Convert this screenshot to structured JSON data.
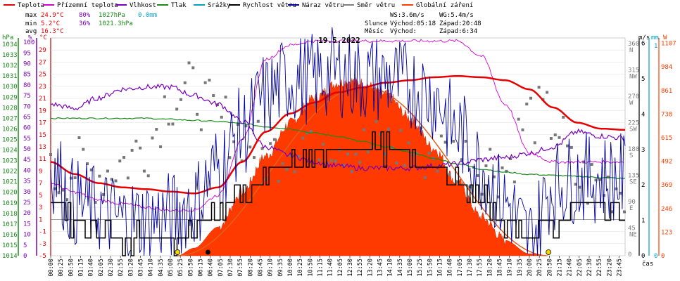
{
  "legend": [
    {
      "label": "Teplota",
      "color": "#e60000"
    },
    {
      "label": "Přízemní teplota",
      "color": "#d400d4"
    },
    {
      "label": "Vlhkost",
      "color": "#7a00b8"
    },
    {
      "label": "Tlak",
      "color": "#1a8a1a"
    },
    {
      "label": "Srážky",
      "color": "#00a0c8"
    },
    {
      "label": "Rychlost větru",
      "color": "#000000"
    },
    {
      "label": "Náraz větru",
      "color": "#0000a0"
    },
    {
      "label": "Směr větru",
      "color": "#808080"
    },
    {
      "label": "Globální záření",
      "color": "#ff4000"
    }
  ],
  "stats": {
    "max_label": "max",
    "max_temp": "24.9°C",
    "max_hum": "80%",
    "max_press": "1027hPa",
    "max_rain": "0.0mm",
    "min_label": "min",
    "min_temp": "5.2°C",
    "min_hum": "36%",
    "min_press": "1021.3hPa",
    "avg_label": "avg",
    "avg_temp": "16.3°C"
  },
  "wind_stats": {
    "ws": "WS:3.6m/s",
    "wg": "WG:5.4m/s",
    "sun_label": "Slunce",
    "sun_rise": "Východ:05:18",
    "sun_set": "Západ:20:48",
    "moon_label": "Měsíc",
    "moon_rise": "Východ:",
    "moon_set": "Západ:6:34"
  },
  "chart_data": {
    "type": "line",
    "title": "19.5.2022",
    "xlabel": "čas",
    "x_ticks": [
      "00:00",
      "00:25",
      "00:50",
      "01:15",
      "01:40",
      "02:05",
      "02:30",
      "02:55",
      "03:20",
      "03:45",
      "04:10",
      "04:35",
      "05:00",
      "05:25",
      "05:50",
      "06:15",
      "06:40",
      "07:05",
      "07:30",
      "07:55",
      "08:20",
      "08:45",
      "09:10",
      "09:35",
      "10:00",
      "10:25",
      "10:50",
      "11:15",
      "11:40",
      "12:05",
      "12:30",
      "12:55",
      "13:20",
      "13:45",
      "14:10",
      "14:35",
      "15:00",
      "15:25",
      "15:50",
      "16:15",
      "16:40",
      "17:05",
      "17:30",
      "17:55",
      "18:20",
      "18:45",
      "19:10",
      "19:35",
      "20:00",
      "20:25",
      "20:50",
      "21:15",
      "21:40",
      "22:05",
      "22:30",
      "22:55",
      "23:20",
      "23:45"
    ],
    "axes": {
      "hpa": {
        "label": "hPa",
        "color": "#1a8a1a",
        "ticks": [
          "1034",
          "1033",
          "1032",
          "1031",
          "1030",
          "1029",
          "1028",
          "1027",
          "1026",
          "1025",
          "1024",
          "1023",
          "1022",
          "1021",
          "1020",
          "1019",
          "1018",
          "1017",
          "1016",
          "1015",
          "1014"
        ]
      },
      "percent": {
        "label": "%",
        "color": "#7a00b8",
        "ticks": [
          "100",
          "95",
          "90",
          "85",
          "80",
          "75",
          "70",
          "65",
          "60",
          "55",
          "50",
          "45",
          "40",
          "35",
          "30",
          "25",
          "20",
          "15",
          "10",
          "5",
          "0"
        ]
      },
      "celsius": {
        "label": "°C",
        "color": "#e60000",
        "ticks": [
          "29",
          "27",
          "25",
          "23",
          "21",
          "19",
          "17",
          "15",
          "13",
          "11",
          "9",
          "7",
          "5",
          "3",
          "1",
          "-1",
          "-3",
          "-5"
        ]
      },
      "ms": {
        "label": "m/s",
        "color": "#000000",
        "ticks": [
          "6",
          "5",
          "4",
          "3",
          "2",
          "1",
          "0"
        ]
      },
      "mm": {
        "label": "mm",
        "color": "#00a0c8",
        "ticks": [
          "1",
          "0"
        ]
      },
      "w": {
        "label": "W",
        "color": "#ff4000",
        "ticks": [
          "1107",
          "984",
          "861",
          "738",
          "615",
          "492",
          "369",
          "246",
          "123",
          "0"
        ]
      },
      "direction": {
        "ticks": [
          {
            "deg": "360",
            "dir": "N"
          },
          {
            "deg": "315",
            "dir": "NW"
          },
          {
            "deg": "270",
            "dir": "W"
          },
          {
            "deg": "225",
            "dir": "SW"
          },
          {
            "deg": "180",
            "dir": "S"
          },
          {
            "deg": "135",
            "dir": "SE"
          },
          {
            "deg": "90",
            "dir": "E"
          },
          {
            "deg": "45",
            "dir": "NE"
          },
          {
            "deg": "0",
            "dir": ""
          }
        ]
      }
    },
    "series": {
      "temperature": {
        "name": "Teplota",
        "unit": "°C",
        "hours": [
          0,
          1,
          2,
          3,
          4,
          5,
          6,
          7,
          8,
          9,
          10,
          11,
          12,
          13,
          14,
          15,
          16,
          17,
          18,
          19,
          20,
          21,
          22,
          23,
          24
        ],
        "values": [
          10.5,
          8.5,
          7.0,
          6.3,
          6.0,
          5.6,
          5.3,
          6.3,
          10.5,
          15.5,
          18.5,
          20.3,
          22.0,
          22.8,
          23.6,
          24.0,
          24.5,
          24.7,
          24.5,
          24.0,
          22.5,
          19.5,
          17.0,
          16.0,
          15.8
        ]
      },
      "ground_temperature": {
        "name": "Přízemní teplota",
        "unit": "°C",
        "hours": [
          0,
          1,
          2,
          3,
          4,
          5,
          6,
          7,
          8,
          9,
          10,
          11,
          12,
          13,
          14,
          15,
          16,
          17,
          18,
          19,
          20,
          21,
          22,
          23,
          24
        ],
        "values": [
          7.0,
          5.5,
          4.2,
          3.6,
          3.0,
          2.5,
          2.6,
          5.0,
          14.0,
          27.5,
          29.8,
          30.5,
          30.5,
          30.5,
          30.5,
          30.5,
          30.5,
          30.5,
          28.0,
          20.0,
          12.0,
          10.5,
          10.5,
          10.5,
          10.5
        ]
      },
      "humidity": {
        "name": "Vlhkost",
        "unit": "%",
        "hours": [
          0,
          1,
          2,
          3,
          4,
          5,
          6,
          7,
          8,
          9,
          10,
          11,
          12,
          13,
          14,
          15,
          16,
          17,
          18,
          19,
          20,
          21,
          22,
          23,
          24
        ],
        "values": [
          71,
          69,
          74,
          78,
          79,
          79,
          75,
          71,
          63,
          51,
          47,
          44,
          42,
          41,
          41,
          41,
          42,
          43,
          45,
          46,
          48,
          51,
          58,
          56,
          55
        ]
      },
      "pressure": {
        "name": "Tlak",
        "unit": "hPa",
        "hours": [
          0,
          1,
          2,
          3,
          4,
          5,
          6,
          7,
          8,
          9,
          10,
          11,
          12,
          13,
          14,
          15,
          16,
          17,
          18,
          19,
          20,
          21,
          22,
          23,
          24
        ],
        "values": [
          1027.0,
          1027.0,
          1027.0,
          1027.0,
          1027.0,
          1026.9,
          1026.8,
          1026.7,
          1026.5,
          1026.2,
          1026.0,
          1025.6,
          1025.3,
          1024.8,
          1024.3,
          1023.8,
          1023.2,
          1022.7,
          1022.2,
          1021.9,
          1021.7,
          1021.6,
          1021.5,
          1021.4,
          1021.3
        ]
      },
      "precipitation": {
        "name": "Srážky",
        "unit": "mm",
        "total": 0.0
      },
      "wind_speed": {
        "name": "Rychlost větru",
        "unit": "m/s",
        "hours": [
          0,
          1,
          2,
          3,
          4,
          5,
          6,
          7,
          8,
          9,
          10,
          11,
          12,
          13,
          14,
          15,
          16,
          17,
          18,
          19,
          20,
          21,
          22,
          23,
          24
        ],
        "values": [
          1.6,
          1.0,
          0.8,
          0.5,
          0.5,
          0.5,
          0.7,
          1.2,
          1.8,
          2.2,
          2.6,
          2.8,
          3.0,
          3.1,
          3.0,
          2.9,
          2.6,
          2.0,
          1.5,
          1.0,
          0.5,
          0.9,
          1.4,
          1.4,
          1.4
        ]
      },
      "wind_gust": {
        "name": "Náraz větru",
        "unit": "m/s",
        "hours": [
          0,
          1,
          2,
          3,
          4,
          5,
          6,
          7,
          8,
          9,
          10,
          11,
          12,
          13,
          14,
          15,
          16,
          17,
          18,
          19,
          20,
          21,
          22,
          23,
          24
        ],
        "values": [
          2.5,
          1.5,
          1.3,
          1.0,
          1.0,
          1.1,
          1.5,
          2.5,
          3.5,
          4.5,
          5.0,
          5.0,
          5.2,
          5.0,
          5.0,
          4.8,
          4.5,
          3.5,
          2.5,
          1.5,
          0.5,
          2.0,
          2.2,
          2.2,
          2.2
        ]
      },
      "wind_direction": {
        "name": "Směr větru",
        "unit": "°",
        "hours": [
          0,
          1,
          2,
          3,
          4,
          5,
          6,
          7,
          8,
          9,
          10,
          11,
          12,
          13,
          14,
          15,
          16,
          17,
          18,
          19,
          20,
          21,
          22,
          23,
          24
        ],
        "values": [
          130,
          150,
          140,
          160,
          190,
          270,
          280,
          230,
          210,
          170,
          190,
          210,
          200,
          180,
          190,
          180,
          175,
          170,
          160,
          150,
          240,
          230,
          130,
          120,
          120
        ]
      },
      "solar_radiation": {
        "name": "Globální záření",
        "unit": "W",
        "hours": [
          5.3,
          6,
          7,
          8,
          9,
          10,
          11,
          12,
          12.5,
          13,
          14,
          15,
          16,
          17,
          18,
          19,
          20,
          20.8
        ],
        "values": [
          0,
          40,
          150,
          330,
          520,
          690,
          820,
          900,
          910,
          900,
          840,
          720,
          560,
          380,
          200,
          80,
          10,
          0
        ],
        "theoretical_max": 880
      }
    },
    "sun_markers": {
      "sunrise_hour": 5.3,
      "sunset_hour": 20.8,
      "moonset_hour": 6.57
    }
  }
}
